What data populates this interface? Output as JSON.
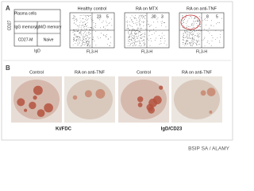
{
  "panel_a": {
    "label": "A",
    "y_axis": "CD27",
    "x_axis": "IgD",
    "quadrants": [
      "Plasma cells",
      "IgG memory",
      "IgM/D memory",
      "CD27-M",
      "Naive"
    ],
    "plots": [
      {
        "title": "Healthy control",
        "x_label": "FL3-H",
        "numbers": [
          "23",
          "5"
        ]
      },
      {
        "title": "RA on MTX",
        "x_label": "FL3-H",
        "numbers": [
          "30",
          "3"
        ]
      },
      {
        "title": "RA on anti-TNF",
        "x_label": "FL3-H",
        "numbers": [
          "8",
          "5"
        ]
      }
    ]
  },
  "panel_b": {
    "label": "B",
    "images": [
      {
        "title": "Control"
      },
      {
        "title": "RA on anti-TNF"
      },
      {
        "title": "Control"
      },
      {
        "title": "RA on anti-TNF"
      }
    ],
    "captions": [
      "Ki/FDC",
      "IgD/CD23"
    ]
  },
  "credit": "BSIP SA / ALAMY"
}
